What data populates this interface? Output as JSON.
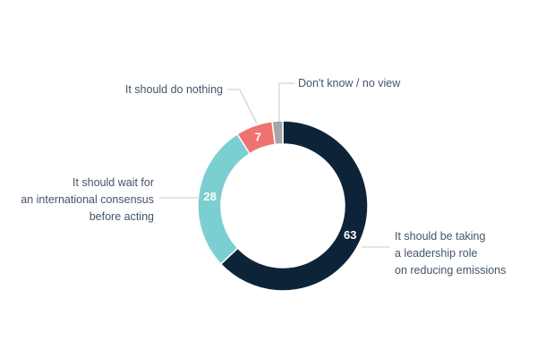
{
  "chart_data": {
    "type": "pie",
    "variant": "donut",
    "categories": [
      "It should be taking a leadership role on reducing emissions",
      "It should wait for an international consensus before acting",
      "It should do nothing",
      "Don't know / no view"
    ],
    "values": [
      63,
      28,
      7,
      2
    ],
    "data_labels": [
      "63",
      "28",
      "7",
      ""
    ],
    "colors": [
      "#0d2438",
      "#7ccfd1",
      "#ef7370",
      "#a6a6a6"
    ],
    "callouts": [
      [
        "It should be taking",
        "a leadership role",
        "on reducing emissions"
      ],
      [
        "It should wait for",
        "an international consensus",
        "before acting"
      ],
      [
        "It should do nothing"
      ],
      [
        "Don't know / no view"
      ]
    ]
  }
}
